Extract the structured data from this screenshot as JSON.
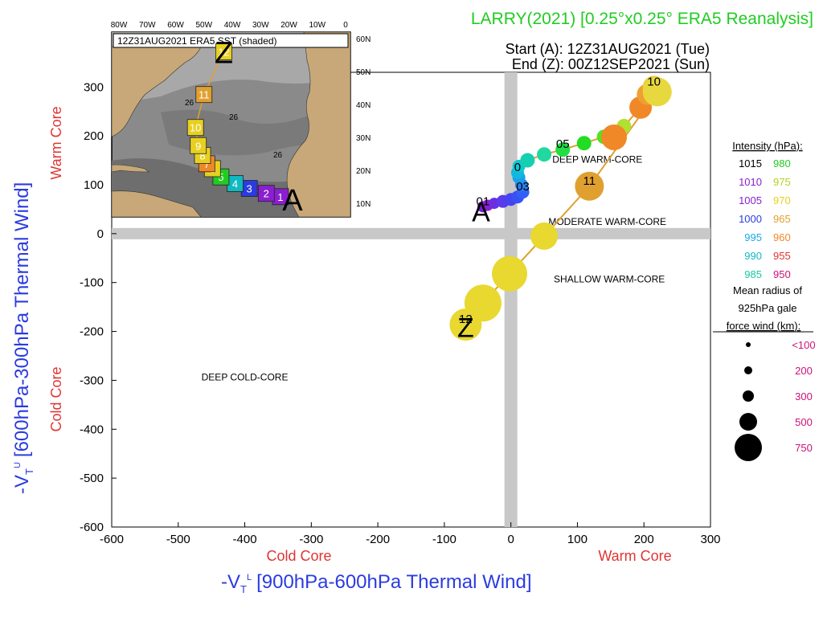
{
  "header": {
    "title": "LARRY(2021) [0.25°x0.25° ERA5 Reanalysis]",
    "start_label": "Start (A): 12Z31AUG2021 (Tue)",
    "end_label": "End (Z): 00Z12SEP2021 (Sun)"
  },
  "colors": {
    "title": "#22cc22",
    "axis_blue": "#2b3be0",
    "axis_red": "#e03434",
    "legend_size": "#cc1177",
    "track_line": "#e0a030",
    "grid_band": "#c8c8c8"
  },
  "chart_data": {
    "type": "scatter",
    "xlabel_main": "-V",
    "xlabel_sub": "T",
    "xlabel_sup": "L",
    "xlabel_rest": "[900hPa-600hPa Thermal Wind]",
    "ylabel_main": "-V",
    "ylabel_sub": "T",
    "ylabel_sup": "U",
    "ylabel_rest": "[600hPa-300hPa Thermal Wind]",
    "x_cold_label": "Cold Core",
    "x_warm_label": "Warm Core",
    "y_cold_label": "Cold Core",
    "y_warm_label": "Warm Core",
    "xlim": [
      -600,
      300
    ],
    "ylim": [
      -600,
      330
    ],
    "xticks": [
      -600,
      -500,
      -400,
      -300,
      -200,
      -100,
      0,
      100,
      200,
      300
    ],
    "yticks": [
      -600,
      -500,
      -400,
      -300,
      -200,
      -100,
      0,
      100,
      200,
      300
    ],
    "region_labels": [
      {
        "text": "DEEP WARM-CORE",
        "x": 130,
        "y": 145
      },
      {
        "text": "MODERATE WARM-CORE",
        "x": 145,
        "y": 18
      },
      {
        "text": "SHALLOW WARM-CORE",
        "x": 148,
        "y": -100
      },
      {
        "text": "DEEP COLD-CORE",
        "x": -400,
        "y": -300
      }
    ],
    "start_marker": {
      "text": "A",
      "x": -45,
      "y": 45
    },
    "end_marker": {
      "text": "Z",
      "x": -68,
      "y": -188
    },
    "points": [
      {
        "x": -42,
        "y": 55,
        "color": "#7a1fd0",
        "r": 7,
        "label": "01"
      },
      {
        "x": -35,
        "y": 58,
        "color": "#8a1fd0",
        "r": 7,
        "label": ""
      },
      {
        "x": -25,
        "y": 62,
        "color": "#6a2ee0",
        "r": 7,
        "label": ""
      },
      {
        "x": -12,
        "y": 66,
        "color": "#5a3aea",
        "r": 8,
        "label": ""
      },
      {
        "x": 0,
        "y": 70,
        "color": "#4444f0",
        "r": 8,
        "label": ""
      },
      {
        "x": 10,
        "y": 75,
        "color": "#3a50f5",
        "r": 8,
        "label": ""
      },
      {
        "x": 18,
        "y": 85,
        "color": "#3060f5",
        "r": 8,
        "label": "03"
      },
      {
        "x": 16,
        "y": 100,
        "color": "#2a80f0",
        "r": 8,
        "label": ""
      },
      {
        "x": 12,
        "y": 115,
        "color": "#1aa0ea",
        "r": 8,
        "label": ""
      },
      {
        "x": 10,
        "y": 125,
        "color": "#10b8e0",
        "r": 8,
        "label": "0"
      },
      {
        "x": 12,
        "y": 138,
        "color": "#10c8d0",
        "r": 8,
        "label": ""
      },
      {
        "x": 25,
        "y": 150,
        "color": "#15d0b0",
        "r": 9,
        "label": ""
      },
      {
        "x": 50,
        "y": 162,
        "color": "#20d8a0",
        "r": 9,
        "label": ""
      },
      {
        "x": 78,
        "y": 172,
        "color": "#22dd44",
        "r": 9,
        "label": "05"
      },
      {
        "x": 110,
        "y": 185,
        "color": "#22dd22",
        "r": 9,
        "label": ""
      },
      {
        "x": 140,
        "y": 198,
        "color": "#55e022",
        "r": 9,
        "label": ""
      },
      {
        "x": 170,
        "y": 220,
        "color": "#b0e030",
        "r": 9,
        "label": ""
      },
      {
        "x": 155,
        "y": 197,
        "color": "#f08828",
        "r": 16,
        "label": ""
      },
      {
        "x": 195,
        "y": 258,
        "color": "#f08828",
        "r": 14,
        "label": ""
      },
      {
        "x": 205,
        "y": 285,
        "color": "#f0a030",
        "r": 13,
        "label": ""
      },
      {
        "x": 215,
        "y": 300,
        "color": "#e8d040",
        "r": 14,
        "label": "10"
      },
      {
        "x": 220,
        "y": 290,
        "color": "#e8d840",
        "r": 18,
        "label": ""
      },
      {
        "x": 118,
        "y": 97,
        "color": "#e0a030",
        "r": 18,
        "label": "11"
      },
      {
        "x": 50,
        "y": -5,
        "color": "#e8d830",
        "r": 17,
        "label": ""
      },
      {
        "x": -2,
        "y": -82,
        "color": "#e8d830",
        "r": 22,
        "label": ""
      },
      {
        "x": -42,
        "y": -142,
        "color": "#e8d830",
        "r": 23,
        "label": ""
      },
      {
        "x": -68,
        "y": -186,
        "color": "#e8d830",
        "r": 20,
        "label": "12"
      }
    ]
  },
  "legend": {
    "intensity_title": "Intensity (hPa):",
    "intensity_rows": [
      {
        "left": "1015",
        "left_color": "#000000",
        "right": "980",
        "right_color": "#22cc22"
      },
      {
        "left": "1010",
        "left_color": "#8a1fd0",
        "right": "975",
        "right_color": "#b8d020"
      },
      {
        "left": "1005",
        "left_color": "#8a1fd0",
        "right": "970",
        "right_color": "#e8d020"
      },
      {
        "left": "1000",
        "left_color": "#2b3be0",
        "right": "965",
        "right_color": "#e0a030"
      },
      {
        "left": "995",
        "left_color": "#1aa8e8",
        "right": "960",
        "right_color": "#f08828"
      },
      {
        "left": "990",
        "left_color": "#10b8c0",
        "right": "955",
        "right_color": "#e03434"
      },
      {
        "left": "985",
        "left_color": "#18c8a0",
        "right": "950",
        "right_color": "#cc1177"
      }
    ],
    "radius_title_1": "Mean radius of",
    "radius_title_2": "925hPa gale",
    "radius_title_3": "force wind (km):",
    "radius_rows": [
      {
        "label": "<100",
        "r": 3
      },
      {
        "label": "200",
        "r": 5
      },
      {
        "label": "300",
        "r": 7
      },
      {
        "label": "500",
        "r": 11
      },
      {
        "label": "750",
        "r": 17
      }
    ]
  },
  "inset_map": {
    "caption": "12Z31AUG2021 ERA5 SST (shaded)",
    "lon_labels": [
      "80W",
      "70W",
      "60W",
      "50W",
      "40W",
      "30W",
      "20W",
      "10W",
      "0"
    ],
    "lat_labels": [
      "60N",
      "50N",
      "40N",
      "30N",
      "20N",
      "10N"
    ],
    "sst_labels": [
      "26",
      "26",
      "26"
    ],
    "start_marker": "A",
    "end_marker": "Z",
    "track": [
      {
        "day": "1",
        "lon": -23,
        "lat": 12,
        "color": "#8a1fd0"
      },
      {
        "day": "2",
        "lon": -28,
        "lat": 13,
        "color": "#8a1fd0"
      },
      {
        "day": "3",
        "lon": -34,
        "lat": 14.5,
        "color": "#2b3be0"
      },
      {
        "day": "4",
        "lon": -39,
        "lat": 16,
        "color": "#10b8c0"
      },
      {
        "day": "5",
        "lon": -44,
        "lat": 18,
        "color": "#22cc22"
      },
      {
        "day": "6",
        "lon": -47,
        "lat": 20.5,
        "color": "#e8d020"
      },
      {
        "day": "7",
        "lon": -49,
        "lat": 22,
        "color": "#f08828"
      },
      {
        "day": "8",
        "lon": -50.5,
        "lat": 24.5,
        "color": "#e8d020"
      },
      {
        "day": "9",
        "lon": -52,
        "lat": 27.5,
        "color": "#e8d020"
      },
      {
        "day": "10",
        "lon": -53,
        "lat": 33,
        "color": "#e8d020"
      },
      {
        "day": "11",
        "lon": -50,
        "lat": 43,
        "color": "#e0a030"
      },
      {
        "day": "12",
        "lon": -43,
        "lat": 56,
        "color": "#e8d020"
      }
    ]
  }
}
